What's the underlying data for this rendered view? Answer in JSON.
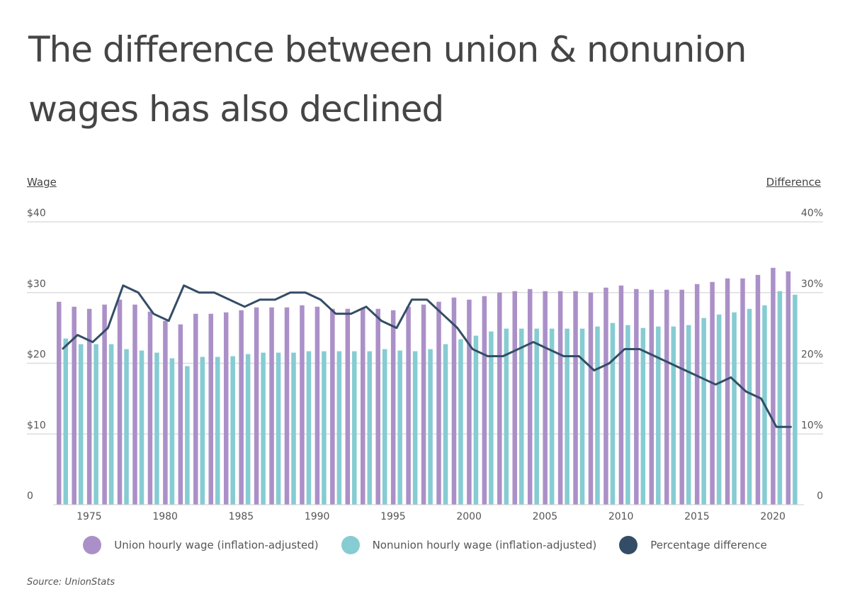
{
  "title": "The difference between union & nonunion wages has also declined",
  "source": "Source:  UnionStats",
  "colors": {
    "union": "#ab90c8",
    "nonunion": "#86ccd2",
    "difference": "#344d66",
    "grid": "#dddddd"
  },
  "chart_data": {
    "type": "bar+line",
    "title": "The difference between union & nonunion wages has also declined",
    "ylabel_left": "Wage",
    "ylabel_right": "Difference",
    "ylim_left": [
      0,
      40
    ],
    "ylim_right": [
      0,
      40
    ],
    "yticks_left": [
      "0",
      "$10",
      "$20",
      "$30",
      "$40"
    ],
    "yticks_right": [
      "0",
      "10%",
      "20%",
      "30%",
      "40%"
    ],
    "xticks": [
      "1975",
      "1980",
      "1985",
      "1990",
      "1995",
      "2000",
      "2005",
      "2010",
      "2015",
      "2020"
    ],
    "grid": true,
    "legend_position": "bottom",
    "x": [
      1973,
      1974,
      1975,
      1976,
      1977,
      1978,
      1979,
      1980,
      1981,
      1982,
      1983,
      1984,
      1985,
      1986,
      1987,
      1988,
      1989,
      1990,
      1991,
      1992,
      1993,
      1994,
      1995,
      1996,
      1997,
      1998,
      1999,
      2000,
      2001,
      2002,
      2003,
      2004,
      2005,
      2006,
      2007,
      2008,
      2009,
      2010,
      2011,
      2012,
      2013,
      2014,
      2015,
      2016,
      2017,
      2018,
      2019,
      2020,
      2021
    ],
    "series": [
      {
        "name": "Union hourly wage (inflation-adjusted)",
        "type": "bar",
        "axis": "left",
        "values": [
          28.7,
          28.0,
          27.7,
          28.3,
          29.0,
          28.3,
          27.3,
          26.0,
          25.5,
          27.0,
          27.0,
          27.2,
          27.5,
          27.9,
          27.9,
          27.9,
          28.2,
          28.0,
          27.7,
          27.7,
          27.8,
          27.7,
          27.5,
          28.0,
          28.3,
          28.7,
          29.3,
          29.0,
          29.5,
          30.0,
          30.2,
          30.5,
          30.2,
          30.2,
          30.2,
          30.0,
          30.7,
          31.0,
          30.5,
          30.4,
          30.4,
          30.4,
          31.2,
          31.5,
          32.0,
          32.0,
          32.5,
          33.5,
          33.0
        ]
      },
      {
        "name": "Nonunion hourly wage (inflation-adjusted)",
        "type": "bar",
        "axis": "left",
        "values": [
          23.5,
          22.7,
          22.7,
          22.7,
          22.0,
          21.8,
          21.5,
          20.7,
          19.6,
          20.9,
          20.9,
          21.0,
          21.3,
          21.5,
          21.5,
          21.5,
          21.7,
          21.7,
          21.7,
          21.7,
          21.7,
          22.0,
          21.8,
          21.7,
          22.0,
          22.7,
          23.4,
          23.9,
          24.5,
          24.9,
          24.9,
          24.9,
          24.9,
          24.9,
          24.9,
          25.2,
          25.7,
          25.4,
          25.0,
          25.2,
          25.2,
          25.4,
          26.4,
          26.9,
          27.2,
          27.7,
          28.2,
          30.2,
          29.7
        ]
      },
      {
        "name": "Percentage difference",
        "type": "line",
        "axis": "right",
        "values": [
          22,
          24,
          23,
          25,
          31,
          30,
          27,
          26,
          31,
          30,
          30,
          29,
          28,
          29,
          29,
          30,
          30,
          29,
          27,
          27,
          28,
          26,
          25,
          29,
          29,
          27,
          25,
          22,
          21,
          21,
          22,
          23,
          22,
          21,
          21,
          19,
          20,
          22,
          22,
          21,
          20,
          19,
          18,
          17,
          18,
          16,
          15,
          11,
          11
        ]
      }
    ]
  }
}
